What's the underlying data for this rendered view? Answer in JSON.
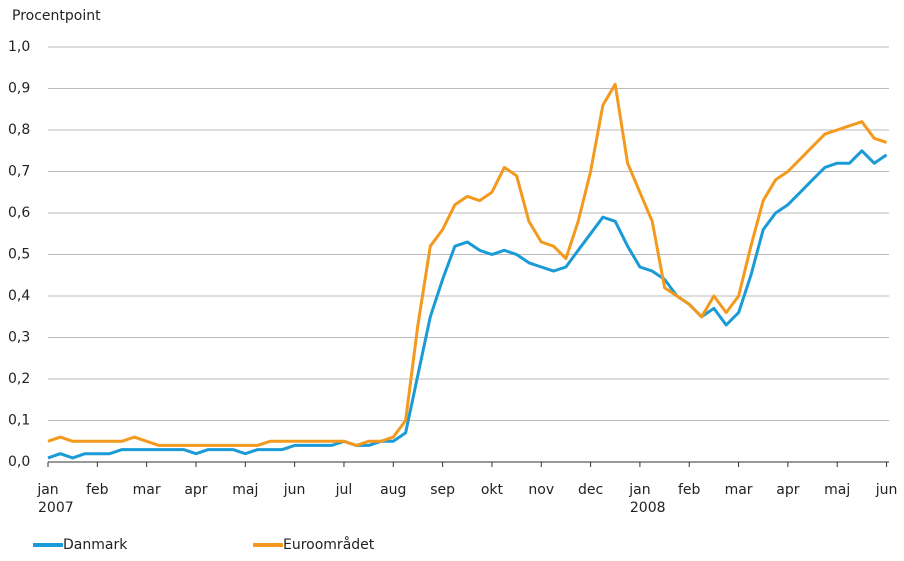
{
  "chart_data": {
    "type": "line",
    "ylabel": "Procentpoint",
    "xlim": [
      0,
      17.05
    ],
    "xticks": [
      {
        "value": 0,
        "label": "jan"
      },
      {
        "value": 1,
        "label": "feb"
      },
      {
        "value": 2,
        "label": "mar"
      },
      {
        "value": 3,
        "label": "apr"
      },
      {
        "value": 4,
        "label": "maj"
      },
      {
        "value": 5,
        "label": "jun"
      },
      {
        "value": 6,
        "label": "jul"
      },
      {
        "value": 7,
        "label": "aug"
      },
      {
        "value": 8,
        "label": "sep"
      },
      {
        "value": 9,
        "label": "okt"
      },
      {
        "value": 10,
        "label": "nov"
      },
      {
        "value": 11,
        "label": "dec"
      },
      {
        "value": 12,
        "label": "jan"
      },
      {
        "value": 13,
        "label": "feb"
      },
      {
        "value": 14,
        "label": "mar"
      },
      {
        "value": 15,
        "label": "apr"
      },
      {
        "value": 16,
        "label": "maj"
      },
      {
        "value": 17,
        "label": "jun"
      }
    ],
    "year_labels": [
      {
        "value": 0,
        "label": "2007"
      },
      {
        "value": 12,
        "label": "2008"
      }
    ],
    "ylim": [
      0,
      1.0
    ],
    "yticks": [
      {
        "value": 0,
        "label": "0,0"
      },
      {
        "value": 0.1,
        "label": "0,1"
      },
      {
        "value": 0.2,
        "label": "0,2"
      },
      {
        "value": 0.3,
        "label": "0,3"
      },
      {
        "value": 0.4,
        "label": "0,4"
      },
      {
        "value": 0.5,
        "label": "0,5"
      },
      {
        "value": 0.6,
        "label": "0,6"
      },
      {
        "value": 0.7,
        "label": "0,7"
      },
      {
        "value": 0.8,
        "label": "0,8"
      },
      {
        "value": 0.9,
        "label": "0,9"
      },
      {
        "value": 1.0,
        "label": "1,0"
      }
    ],
    "grid": true,
    "legend": "bottom-left",
    "x": [
      0,
      0.25,
      0.5,
      0.75,
      1,
      1.25,
      1.5,
      1.75,
      2,
      2.25,
      2.5,
      2.75,
      3,
      3.25,
      3.5,
      3.75,
      4,
      4.25,
      4.5,
      4.75,
      5,
      5.25,
      5.5,
      5.75,
      6,
      6.25,
      6.5,
      6.75,
      7,
      7.25,
      7.5,
      7.75,
      8,
      8.25,
      8.5,
      8.75,
      9,
      9.25,
      9.5,
      9.75,
      10,
      10.25,
      10.5,
      10.75,
      11,
      11.25,
      11.5,
      11.75,
      12,
      12.25,
      12.5,
      12.75,
      13,
      13.25,
      13.5,
      13.75,
      14,
      14.25,
      14.5,
      14.75,
      15,
      15.25,
      15.5,
      15.75,
      16,
      16.25,
      16.5,
      16.75,
      17
    ],
    "series": [
      {
        "name": "Danmark",
        "color": "#1a9bd7",
        "values": [
          0.01,
          0.02,
          0.01,
          0.02,
          0.02,
          0.02,
          0.03,
          0.03,
          0.03,
          0.03,
          0.03,
          0.03,
          0.02,
          0.03,
          0.03,
          0.03,
          0.02,
          0.03,
          0.03,
          0.03,
          0.04,
          0.04,
          0.04,
          0.04,
          0.05,
          0.04,
          0.04,
          0.05,
          0.05,
          0.07,
          0.21,
          0.35,
          0.44,
          0.52,
          0.53,
          0.51,
          0.5,
          0.51,
          0.5,
          0.48,
          0.47,
          0.46,
          0.47,
          0.51,
          0.55,
          0.59,
          0.58,
          0.52,
          0.47,
          0.46,
          0.44,
          0.4,
          0.38,
          0.35,
          0.37,
          0.33,
          0.36,
          0.45,
          0.56,
          0.6,
          0.62,
          0.65,
          0.68,
          0.71,
          0.72,
          0.72,
          0.75,
          0.72,
          0.74
        ]
      },
      {
        "name": "Euroområdet",
        "color": "#f39a1e",
        "values": [
          0.05,
          0.06,
          0.05,
          0.05,
          0.05,
          0.05,
          0.05,
          0.06,
          0.05,
          0.04,
          0.04,
          0.04,
          0.04,
          0.04,
          0.04,
          0.04,
          0.04,
          0.04,
          0.05,
          0.05,
          0.05,
          0.05,
          0.05,
          0.05,
          0.05,
          0.04,
          0.05,
          0.05,
          0.06,
          0.1,
          0.33,
          0.52,
          0.56,
          0.62,
          0.64,
          0.63,
          0.65,
          0.71,
          0.69,
          0.58,
          0.53,
          0.52,
          0.49,
          0.58,
          0.7,
          0.86,
          0.91,
          0.72,
          0.65,
          0.58,
          0.42,
          0.4,
          0.38,
          0.35,
          0.4,
          0.36,
          0.4,
          0.52,
          0.63,
          0.68,
          0.7,
          0.73,
          0.76,
          0.79,
          0.8,
          0.81,
          0.82,
          0.78,
          0.77
        ]
      }
    ]
  }
}
